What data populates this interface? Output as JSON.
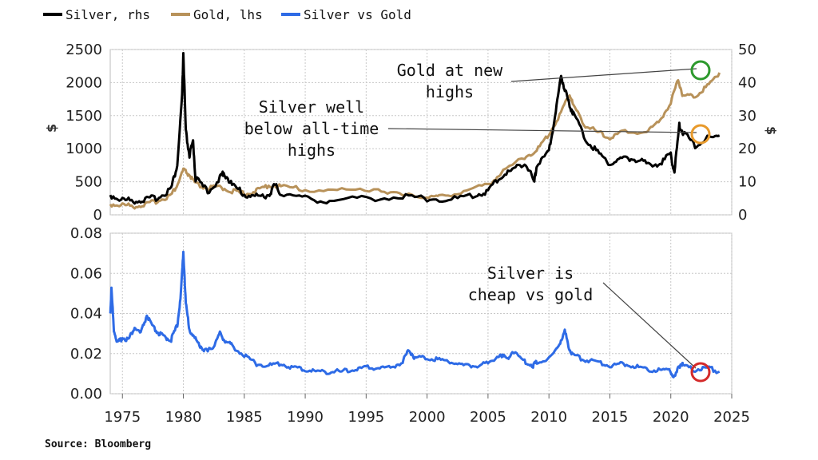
{
  "legend": {
    "silver": "Silver, rhs",
    "gold": "Gold, lhs",
    "ratio": "Silver vs Gold"
  },
  "colors": {
    "silver": "#000000",
    "gold": "#b8925a",
    "ratio": "#2e6be6",
    "green": "#2e9a2e",
    "orange": "#e89a2c",
    "red": "#d42a2a",
    "grid": "#c8c8c8"
  },
  "source": "Source: Bloomberg",
  "annotations": {
    "gold": [
      "Gold at new",
      "highs"
    ],
    "silver": [
      "Silver well",
      "below all-time",
      "highs"
    ],
    "ratio": [
      "Silver is",
      "cheap vs gold"
    ]
  },
  "chart_data": [
    {
      "type": "line",
      "panel": "top",
      "y_left_label": "$",
      "y_right_label": "$",
      "x_ticks": [
        1975,
        1980,
        1985,
        1990,
        1995,
        2000,
        2005,
        2010,
        2015,
        2020,
        2025
      ],
      "y_left_ticks": [
        "2500",
        "2000",
        "1500",
        "1000",
        "500",
        "0"
      ],
      "y_left_values": [
        2500,
        2000,
        1500,
        1000,
        500,
        0
      ],
      "y_right_ticks": [
        "50",
        "40",
        "30",
        "20",
        "10",
        "0"
      ],
      "y_right_values": [
        50,
        40,
        30,
        20,
        10,
        0
      ],
      "xlim": [
        1974,
        2025
      ],
      "ylim_left": [
        0,
        2500
      ],
      "ylim_right": [
        0,
        50
      ],
      "series": [
        {
          "name": "Gold, lhs",
          "axis": "left",
          "x": [
            1974,
            1975,
            1976,
            1977,
            1978,
            1979,
            1979.5,
            1980.0,
            1980.5,
            1981,
            1982,
            1983,
            1984,
            1985,
            1986,
            1987,
            1988,
            1990,
            1993,
            1996,
            1998,
            2000,
            2001,
            2003,
            2005,
            2006,
            2008,
            2009,
            2010,
            2011,
            2011.7,
            2012,
            2013,
            2014,
            2015,
            2016,
            2018,
            2019,
            2020,
            2020.6,
            2021,
            2022,
            2023,
            2024
          ],
          "y": [
            160,
            150,
            130,
            160,
            220,
            300,
            450,
            680,
            600,
            460,
            400,
            420,
            360,
            320,
            360,
            450,
            430,
            380,
            370,
            390,
            290,
            280,
            270,
            360,
            450,
            620,
            880,
            970,
            1220,
            1550,
            1830,
            1650,
            1350,
            1250,
            1160,
            1250,
            1260,
            1400,
            1700,
            2050,
            1800,
            1800,
            1950,
            2150
          ]
        },
        {
          "name": "Silver, rhs",
          "axis": "right",
          "x": [
            1974,
            1975,
            1976,
            1977,
            1978,
            1979,
            1979.5,
            1979.9,
            1980.0,
            1980.2,
            1980.5,
            1980.8,
            1981,
            1982,
            1983,
            1983.3,
            1984,
            1985,
            1986,
            1987,
            1987.5,
            1988,
            1990,
            1992,
            1995,
            1998,
            2000,
            2002,
            2004,
            2005,
            2006,
            2007,
            2008,
            2008.8,
            2009,
            2010,
            2010.5,
            2011,
            2011.3,
            2011.7,
            2012,
            2013,
            2014,
            2015,
            2016,
            2017,
            2018,
            2019,
            2020,
            2020.3,
            2020.7,
            2021,
            2022,
            2023,
            2024
          ],
          "y": [
            6,
            4.5,
            4.3,
            4.6,
            5.4,
            8,
            15,
            36,
            49,
            25,
            18,
            22,
            11,
            7,
            11,
            13,
            9,
            6.2,
            5.5,
            6,
            9,
            6.5,
            5,
            4.2,
            5,
            5.5,
            5,
            4.6,
            6,
            7.2,
            11.5,
            13.5,
            16,
            10,
            15,
            19,
            30,
            42,
            38,
            33,
            31,
            23,
            19,
            15.5,
            17,
            17,
            15.5,
            15.5,
            18,
            13,
            27,
            25,
            21,
            23,
            24
          ]
        }
      ]
    },
    {
      "type": "line",
      "panel": "bottom",
      "x_ticks": [
        1975,
        1980,
        1985,
        1990,
        1995,
        2000,
        2005,
        2010,
        2015,
        2020,
        2025
      ],
      "y_ticks": [
        "0.08",
        "0.06",
        "0.04",
        "0.02",
        "0.00"
      ],
      "y_values": [
        0.08,
        0.06,
        0.04,
        0.02,
        0.0
      ],
      "xlim": [
        1974,
        2025
      ],
      "ylim": [
        0,
        0.08
      ],
      "series": [
        {
          "name": "Silver vs Gold",
          "x": [
            1974,
            1974.1,
            1974.3,
            1974.6,
            1975,
            1975.5,
            1976,
            1976.5,
            1977,
            1977.5,
            1978,
            1978.5,
            1979,
            1979.5,
            1979.8,
            1980.0,
            1980.2,
            1980.5,
            1981,
            1981.5,
            1982,
            1982.5,
            1983,
            1983.5,
            1984,
            1985,
            1986,
            1987,
            1988,
            1989,
            1990,
            1991,
            1992,
            1993,
            1994,
            1995,
            1996,
            1997,
            1998,
            1998.5,
            1999,
            2000,
            2001,
            2002,
            2003,
            2004,
            2005,
            2006,
            2006.5,
            2007,
            2008,
            2008.7,
            2009,
            2010,
            2010.8,
            2011.3,
            2011.7,
            2012,
            2013,
            2014,
            2015,
            2016,
            2017,
            2018,
            2019,
            2020,
            2020.3,
            2020.8,
            2021,
            2022,
            2023,
            2024
          ],
          "y": [
            0.04,
            0.052,
            0.032,
            0.025,
            0.028,
            0.027,
            0.033,
            0.03,
            0.039,
            0.033,
            0.03,
            0.028,
            0.027,
            0.034,
            0.05,
            0.071,
            0.045,
            0.032,
            0.027,
            0.023,
            0.021,
            0.024,
            0.03,
            0.026,
            0.024,
            0.019,
            0.015,
            0.014,
            0.015,
            0.013,
            0.012,
            0.011,
            0.011,
            0.011,
            0.012,
            0.013,
            0.013,
            0.013,
            0.016,
            0.022,
            0.018,
            0.018,
            0.017,
            0.016,
            0.014,
            0.014,
            0.015,
            0.02,
            0.017,
            0.021,
            0.016,
            0.014,
            0.016,
            0.017,
            0.024,
            0.031,
            0.022,
            0.019,
            0.017,
            0.016,
            0.014,
            0.015,
            0.014,
            0.012,
            0.012,
            0.011,
            0.008,
            0.015,
            0.014,
            0.012,
            0.013,
            0.011
          ]
        }
      ]
    }
  ]
}
